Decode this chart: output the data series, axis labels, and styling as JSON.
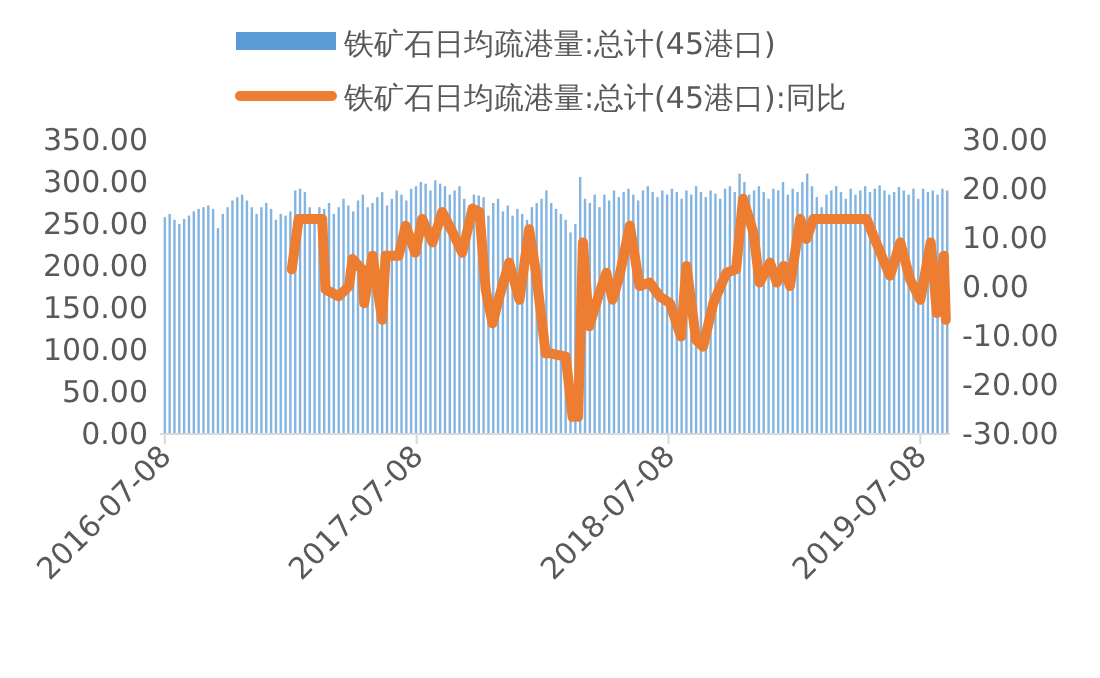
{
  "chart_data": {
    "type": "bar",
    "legend": "top",
    "grid": false,
    "xlim": [
      "2016-07-01",
      "2019-08-20"
    ],
    "xticks": [
      "2016-07-08",
      "2017-07-08",
      "2018-07-08",
      "2019-07-08"
    ],
    "ylim": [
      0,
      350
    ],
    "yticks": [
      {
        "value": 0,
        "label": "0.00"
      },
      {
        "value": 50,
        "label": "50.00"
      },
      {
        "value": 100,
        "label": "100.00"
      },
      {
        "value": 150,
        "label": "150.00"
      },
      {
        "value": 200,
        "label": "200.00"
      },
      {
        "value": 250,
        "label": "250.00"
      },
      {
        "value": 300,
        "label": "300.00"
      },
      {
        "value": 350,
        "label": "350.00"
      }
    ],
    "y2lim": [
      -30,
      30
    ],
    "y2ticks": [
      {
        "value": -30,
        "label": "-30.00"
      },
      {
        "value": -20,
        "label": "-20.00"
      },
      {
        "value": -10,
        "label": "-10.00"
      },
      {
        "value": 0,
        "label": "0.00"
      },
      {
        "value": 10,
        "label": "10.00"
      },
      {
        "value": 20,
        "label": "20.00"
      },
      {
        "value": 30,
        "label": "30.00"
      }
    ],
    "series": [
      {
        "name": "铁矿石日均疏港量:总计(45港口)",
        "color": "#5b9bd5",
        "x": [
          "2016-07-08",
          "2016-07-15",
          "2016-07-22",
          "2016-07-29",
          "2016-08-05",
          "2016-08-12",
          "2016-08-19",
          "2016-08-26",
          "2016-09-02",
          "2016-09-09",
          "2016-09-16",
          "2016-09-23",
          "2016-09-30",
          "2016-10-07",
          "2016-10-14",
          "2016-10-21",
          "2016-10-28",
          "2016-11-04",
          "2016-11-11",
          "2016-11-18",
          "2016-11-25",
          "2016-12-02",
          "2016-12-09",
          "2016-12-16",
          "2016-12-23",
          "2016-12-30",
          "2017-01-06",
          "2017-01-13",
          "2017-01-20",
          "2017-01-27",
          "2017-02-03",
          "2017-02-10",
          "2017-02-17",
          "2017-02-24",
          "2017-03-03",
          "2017-03-10",
          "2017-03-17",
          "2017-03-24",
          "2017-03-31",
          "2017-04-07",
          "2017-04-14",
          "2017-04-21",
          "2017-04-28",
          "2017-05-05",
          "2017-05-12",
          "2017-05-19",
          "2017-05-26",
          "2017-06-02",
          "2017-06-09",
          "2017-06-16",
          "2017-06-23",
          "2017-06-30",
          "2017-07-07",
          "2017-07-14",
          "2017-07-21",
          "2017-07-28",
          "2017-08-04",
          "2017-08-11",
          "2017-08-18",
          "2017-08-25",
          "2017-09-01",
          "2017-09-08",
          "2017-09-15",
          "2017-09-22",
          "2017-09-29",
          "2017-10-06",
          "2017-10-13",
          "2017-10-20",
          "2017-10-27",
          "2017-11-03",
          "2017-11-10",
          "2017-11-17",
          "2017-11-24",
          "2017-12-01",
          "2017-12-08",
          "2017-12-15",
          "2017-12-22",
          "2017-12-29",
          "2018-01-05",
          "2018-01-12",
          "2018-01-19",
          "2018-01-26",
          "2018-02-02",
          "2018-02-09",
          "2018-02-16",
          "2018-02-23",
          "2018-03-02",
          "2018-03-09",
          "2018-03-16",
          "2018-03-23",
          "2018-03-30",
          "2018-04-06",
          "2018-04-13",
          "2018-04-20",
          "2018-04-27",
          "2018-05-04",
          "2018-05-11",
          "2018-05-18",
          "2018-05-25",
          "2018-06-01",
          "2018-06-08",
          "2018-06-15",
          "2018-06-22",
          "2018-06-29",
          "2018-07-06",
          "2018-07-13",
          "2018-07-20",
          "2018-07-27",
          "2018-08-03",
          "2018-08-10",
          "2018-08-17",
          "2018-08-24",
          "2018-08-31",
          "2018-09-07",
          "2018-09-14",
          "2018-09-21",
          "2018-09-28",
          "2018-10-05",
          "2018-10-12",
          "2018-10-19",
          "2018-10-26",
          "2018-11-02",
          "2018-11-09",
          "2018-11-16",
          "2018-11-23",
          "2018-11-30",
          "2018-12-07",
          "2018-12-14",
          "2018-12-21",
          "2018-12-28",
          "2019-01-04",
          "2019-01-11",
          "2019-01-18",
          "2019-01-25",
          "2019-02-01",
          "2019-02-08",
          "2019-02-15",
          "2019-02-22",
          "2019-03-01",
          "2019-03-08",
          "2019-03-15",
          "2019-03-22",
          "2019-03-29",
          "2019-04-05",
          "2019-04-12",
          "2019-04-19",
          "2019-04-26",
          "2019-05-03",
          "2019-05-10",
          "2019-05-17",
          "2019-05-24",
          "2019-05-31",
          "2019-06-07",
          "2019-06-14",
          "2019-06-21",
          "2019-06-28",
          "2019-07-05",
          "2019-07-12",
          "2019-07-19",
          "2019-07-26",
          "2019-08-02",
          "2019-08-09",
          "2019-08-16"
        ],
        "values": [
          258,
          262,
          255,
          250,
          256,
          260,
          265,
          268,
          270,
          272,
          268,
          245,
          262,
          270,
          278,
          282,
          285,
          278,
          270,
          262,
          270,
          275,
          268,
          255,
          262,
          260,
          265,
          290,
          292,
          288,
          270,
          262,
          270,
          268,
          275,
          262,
          270,
          280,
          272,
          265,
          278,
          285,
          270,
          275,
          282,
          288,
          272,
          280,
          290,
          285,
          278,
          292,
          295,
          300,
          298,
          290,
          302,
          298,
          295,
          285,
          290,
          295,
          280,
          272,
          285,
          284,
          282,
          260,
          275,
          280,
          265,
          272,
          260,
          268,
          262,
          255,
          270,
          275,
          280,
          290,
          275,
          268,
          262,
          255,
          240,
          250,
          306,
          280,
          275,
          285,
          270,
          285,
          278,
          290,
          282,
          288,
          292,
          285,
          278,
          290,
          295,
          288,
          282,
          290,
          285,
          292,
          288,
          280,
          290,
          285,
          295,
          288,
          282,
          290,
          286,
          280,
          292,
          295,
          288,
          310,
          300,
          285,
          290,
          295,
          288,
          280,
          292,
          290,
          300,
          285,
          292,
          288,
          300,
          310,
          295,
          282,
          270,
          285,
          290,
          295,
          288,
          280,
          292,
          285,
          290,
          295,
          288,
          292,
          296,
          290,
          285,
          288,
          294,
          290,
          285,
          292,
          280,
          292,
          288,
          290,
          285,
          292,
          290
        ]
      },
      {
        "name": "铁矿石日均疏港量:总计(45港口):同比",
        "type": "line",
        "axis": "y2",
        "color": "#ed7d31",
        "line_style": "solid",
        "marker": "none",
        "x": [
          "2017-01-08",
          "2017-01-18",
          "2017-02-21",
          "2017-02-26",
          "2017-03-17",
          "2017-04-01",
          "2017-04-06",
          "2017-04-20",
          "2017-04-23",
          "2017-05-05",
          "2017-05-19",
          "2017-05-24",
          "2017-06-12",
          "2017-06-22",
          "2017-07-06",
          "2017-07-16",
          "2017-07-31",
          "2017-08-14",
          "2017-08-29",
          "2017-09-12",
          "2017-09-27",
          "2017-10-07",
          "2017-10-16",
          "2017-10-26",
          "2017-11-05",
          "2017-11-19",
          "2017-12-04",
          "2017-12-18",
          "2017-12-28",
          "2018-01-11",
          "2018-01-16",
          "2018-02-09",
          "2018-02-19",
          "2018-02-27",
          "2018-03-06",
          "2018-03-15",
          "2018-03-30",
          "2018-04-09",
          "2018-04-18",
          "2018-04-28",
          "2018-05-13",
          "2018-05-27",
          "2018-06-11",
          "2018-06-25",
          "2018-07-10",
          "2018-07-26",
          "2018-08-03",
          "2018-08-17",
          "2018-08-27",
          "2018-09-11",
          "2018-09-30",
          "2018-10-14",
          "2018-10-24",
          "2018-11-08",
          "2018-11-17",
          "2018-12-02",
          "2018-12-12",
          "2018-12-22",
          "2018-12-31",
          "2019-01-15",
          "2019-01-24",
          "2019-02-03",
          "2019-04-21",
          "2019-05-11",
          "2019-05-25",
          "2019-06-09",
          "2019-06-23",
          "2019-07-08",
          "2019-07-23",
          "2019-08-01",
          "2019-08-11",
          "2019-08-14"
        ],
        "values": [
          3.6,
          13.9,
          13.9,
          -0.5,
          -1.9,
          0.2,
          5.7,
          3.6,
          -3.3,
          6.4,
          -6.7,
          6.4,
          6.4,
          12.5,
          7.0,
          13.9,
          9.1,
          15.3,
          11.2,
          7.0,
          16.0,
          15.3,
          -0.5,
          -7.4,
          -1.9,
          5.0,
          -2.6,
          11.8,
          2.9,
          -13.5,
          -13.5,
          -14.2,
          -26.5,
          -26.5,
          9.1,
          -8.0,
          -1.2,
          2.9,
          -2.6,
          2.3,
          12.5,
          0.2,
          0.9,
          -1.9,
          -3.3,
          -10.1,
          4.3,
          -10.8,
          -12.2,
          -3.3,
          2.9,
          3.6,
          18.0,
          11.2,
          0.9,
          5.0,
          0.9,
          4.3,
          0.2,
          13.9,
          9.8,
          13.9,
          13.9,
          7.0,
          2.3,
          9.1,
          1.6,
          -2.6,
          9.1,
          -5.3,
          6.4,
          -6.7
        ]
      }
    ]
  }
}
